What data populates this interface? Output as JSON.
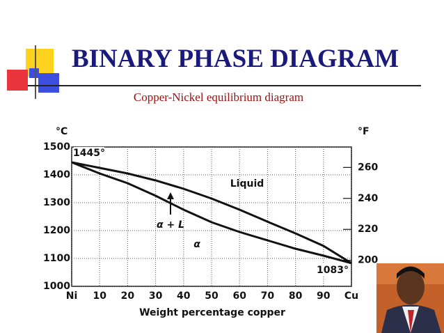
{
  "slide": {
    "title": "BINARY PHASE DIAGRAM",
    "subtitle": "Copper-Nickel equilibrium diagram"
  },
  "chart_data": {
    "type": "line",
    "x": [
      0,
      10,
      20,
      30,
      40,
      50,
      60,
      70,
      80,
      90,
      100
    ],
    "series": [
      {
        "color": "#111111",
        "values": [
          1445,
          1425,
          1405,
          1380,
          1350,
          1315,
          1275,
          1232,
          1190,
          1145,
          1083
        ]
      },
      {
        "color": "#111111",
        "values": [
          1445,
          1405,
          1370,
          1325,
          1275,
          1230,
          1195,
          1165,
          1135,
          1110,
          1083
        ]
      }
    ],
    "xlim": [
      0,
      100
    ],
    "xticks": [
      {
        "value": 0,
        "label": "Ni"
      },
      10,
      20,
      30,
      40,
      50,
      60,
      70,
      80,
      90,
      {
        "value": 100,
        "label": "Cu"
      }
    ],
    "ylim": [
      1000,
      1500
    ],
    "yticks": [
      1000,
      1100,
      1200,
      1300,
      1400,
      1500
    ],
    "y2lim": [
      183.2,
      273.2
    ],
    "y2ticks": [
      200,
      220,
      240,
      260
    ],
    "ylabel": "°C",
    "y2label": "°F",
    "xlabel": "Weight percentage copper",
    "grid": true,
    "annotations": [
      "1445°",
      "1083°",
      "Liquid",
      "α + L",
      "α"
    ]
  }
}
